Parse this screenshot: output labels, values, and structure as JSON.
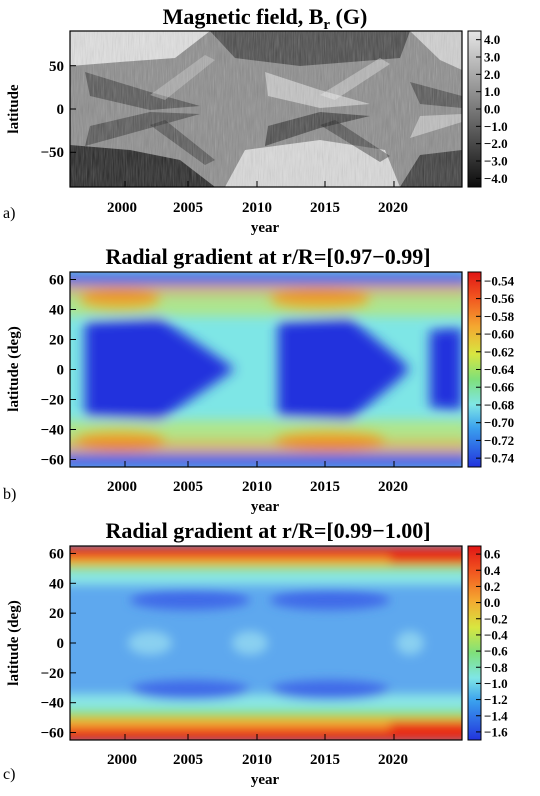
{
  "chart_data": [
    {
      "type": "heatmap",
      "panel_label": "a)",
      "title": "Magnetic field, B",
      "title_sub": "r",
      "title_suffix": " (G)",
      "xlabel": "year",
      "ylabel": "latitude",
      "xlim": [
        1996,
        2024.5
      ],
      "ylim": [
        -90,
        90
      ],
      "xticks": [
        2000,
        2005,
        2010,
        2015,
        2020
      ],
      "yticks": [
        -50,
        0,
        50
      ],
      "colorbar": {
        "ticks": [
          "4.0",
          "3.0",
          "2.0",
          "1.0",
          "0.0",
          "−1.0",
          "−2.0",
          "−3.0",
          "−4.0"
        ],
        "range": [
          -4.5,
          4.5
        ],
        "colors": [
          "#111111",
          "#dddddd"
        ]
      },
      "description_features": {
        "north_polar_positive_until": 2009,
        "north_polar_positive_from": 2021,
        "south_polar_negative_until": 2009,
        "south_polar_positive_2014_2020": true
      }
    },
    {
      "type": "heatmap",
      "panel_label": "b)",
      "title": "Radial gradient at r/R=[0.97−0.99]",
      "xlabel": "year",
      "ylabel": "latitude (deg)",
      "xlim": [
        1996,
        2024.5
      ],
      "ylim": [
        -65,
        65
      ],
      "xticks": [
        2000,
        2005,
        2010,
        2015,
        2020
      ],
      "yticks": [
        -60,
        -40,
        -20,
        0,
        20,
        40,
        60
      ],
      "colorbar": {
        "ticks": [
          "−0.54",
          "−0.56",
          "−0.58",
          "−0.60",
          "−0.62",
          "−0.64",
          "−0.66",
          "−0.68",
          "−0.70",
          "−0.72",
          "−0.74"
        ],
        "range": [
          -0.75,
          -0.535
        ]
      }
    },
    {
      "type": "heatmap",
      "panel_label": "c)",
      "title": "Radial gradient at r/R=[0.99−1.00]",
      "xlabel": "year",
      "ylabel": "latitude (deg)",
      "xlim": [
        1996,
        2024.5
      ],
      "ylim": [
        -65,
        65
      ],
      "xticks": [
        2000,
        2005,
        2010,
        2015,
        2020
      ],
      "yticks": [
        -60,
        -40,
        -20,
        0,
        20,
        40,
        60
      ],
      "colorbar": {
        "ticks": [
          "0.6",
          "0.4",
          "0.2",
          "0.0",
          "−0.2",
          "−0.4",
          "−0.6",
          "−0.8",
          "−1.0",
          "−1.2",
          "−1.4",
          "−1.6"
        ],
        "range": [
          -1.7,
          0.65
        ]
      }
    }
  ]
}
